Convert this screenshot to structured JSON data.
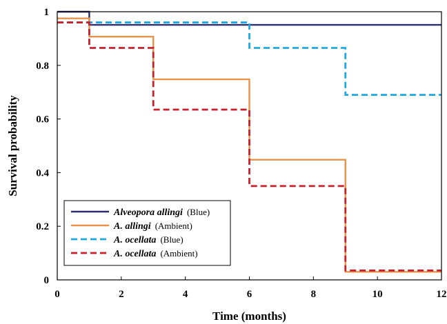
{
  "chart_data": {
    "type": "line",
    "subtype": "step",
    "title": "",
    "xlabel": "Time (months)",
    "ylabel": "Survival probability",
    "xlim": [
      0,
      12
    ],
    "ylim": [
      0,
      1
    ],
    "x_ticks": [
      "0",
      "2",
      "4",
      "6",
      "8",
      "10",
      "12"
    ],
    "y_ticks": [
      "0",
      "0.2",
      "0.4",
      "0.6",
      "0.8",
      "1"
    ],
    "grid": false,
    "legend_position": "bottom-left",
    "series": [
      {
        "name": "Alveopora allingi",
        "condition": "(Blue)",
        "color": "#2b2d6e",
        "dash": "solid",
        "x": [
          0,
          1,
          12
        ],
        "y": [
          1.0,
          0.951,
          0.951
        ]
      },
      {
        "name": "A. allingi",
        "condition": "(Ambient)",
        "color": "#e8924a",
        "dash": "solid",
        "x": [
          0,
          1,
          3,
          6,
          9,
          12
        ],
        "y": [
          0.975,
          0.907,
          0.748,
          0.448,
          0.03,
          0.03
        ]
      },
      {
        "name": "A. ocellata",
        "condition": "(Blue)",
        "color": "#1ea7e0",
        "dash": "dashed",
        "x": [
          0,
          1,
          6,
          9,
          12
        ],
        "y": [
          0.96,
          0.96,
          0.865,
          0.69,
          0.69
        ]
      },
      {
        "name": "A. ocellata",
        "condition": "(Ambient)",
        "color": "#c8202a",
        "dash": "dashed",
        "x": [
          0,
          1,
          3,
          6,
          9,
          12
        ],
        "y": [
          0.96,
          0.865,
          0.635,
          0.35,
          0.035,
          0.035
        ]
      }
    ]
  }
}
